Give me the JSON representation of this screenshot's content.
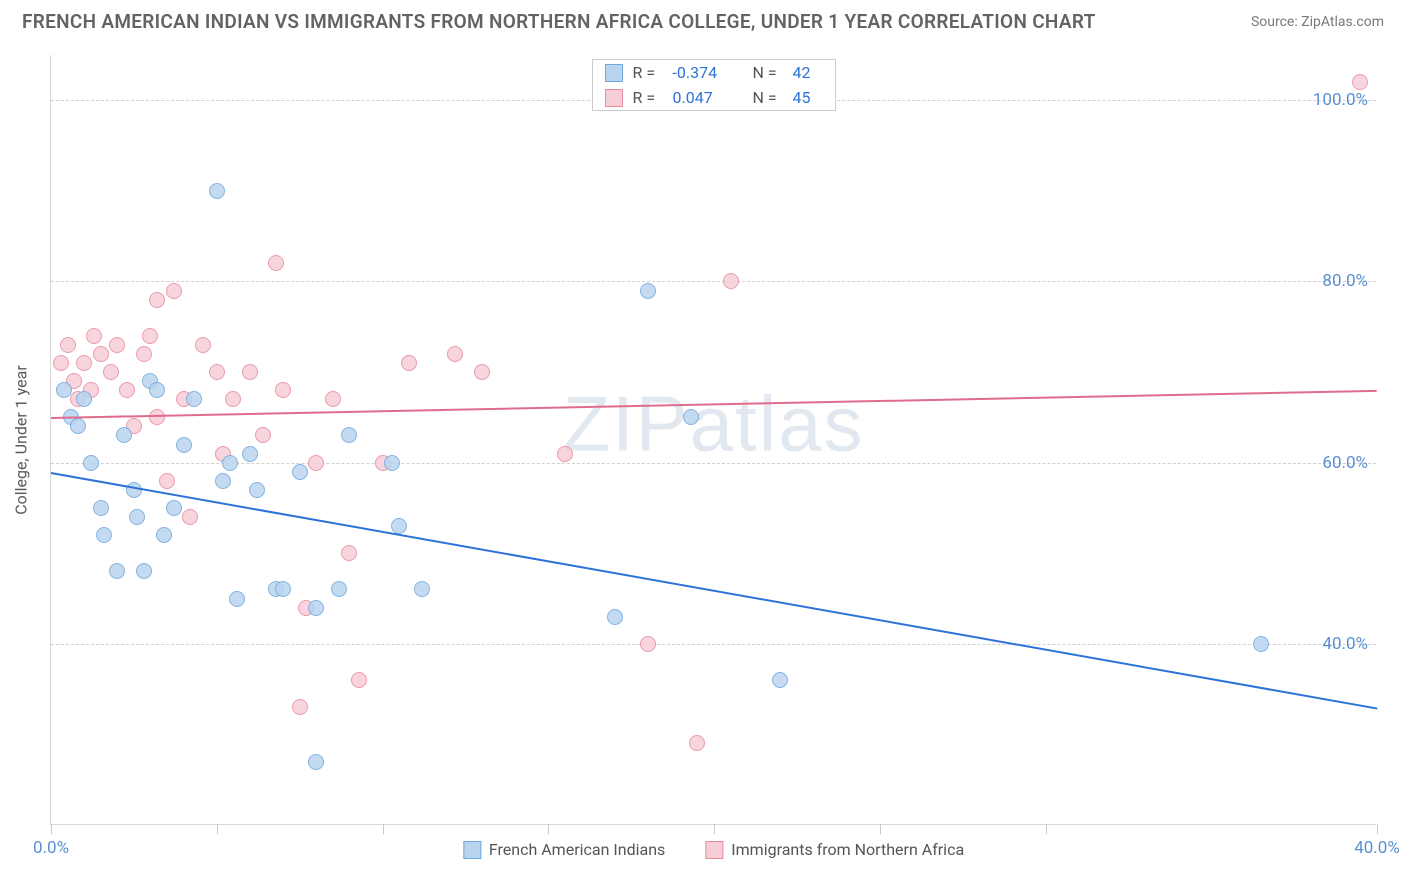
{
  "title": "FRENCH AMERICAN INDIAN VS IMMIGRANTS FROM NORTHERN AFRICA COLLEGE, UNDER 1 YEAR CORRELATION CHART",
  "source_label": "Source: ZipAtlas.com",
  "watermark": "ZIPatlas",
  "chart": {
    "type": "scatter",
    "y_axis_label": "College, Under 1 year",
    "xlim": [
      0,
      40
    ],
    "ylim": [
      20,
      105
    ],
    "x_ticks": [
      0,
      5,
      10,
      15,
      20,
      25,
      30,
      40
    ],
    "x_tick_labels": {
      "0": "0.0%",
      "40": "40.0%"
    },
    "y_gridlines": [
      40,
      60,
      80,
      100
    ],
    "y_tick_labels": {
      "40": "40.0%",
      "60": "60.0%",
      "80": "80.0%",
      "100": "100.0%"
    },
    "background_color": "#ffffff",
    "grid_color": "#d0d0d0",
    "axis_color": "#d8d8d8",
    "tick_label_color": "#5a8fd6",
    "series": [
      {
        "name": "French American Indians",
        "fill_color": "#b9d4ef",
        "stroke_color": "#6fa8dc",
        "trend_color": "#2d72d9",
        "stats": {
          "R": "-0.374",
          "N": "42"
        },
        "trend": {
          "x1": 0,
          "y1": 59,
          "x2": 40,
          "y2": 33
        },
        "points": [
          [
            0.4,
            68
          ],
          [
            0.6,
            65
          ],
          [
            0.8,
            64
          ],
          [
            1.0,
            67
          ],
          [
            1.2,
            60
          ],
          [
            1.5,
            55
          ],
          [
            1.6,
            52
          ],
          [
            2.0,
            48
          ],
          [
            2.2,
            63
          ],
          [
            2.5,
            57
          ],
          [
            2.6,
            54
          ],
          [
            2.8,
            48
          ],
          [
            3.0,
            69
          ],
          [
            3.2,
            68
          ],
          [
            3.4,
            52
          ],
          [
            3.7,
            55
          ],
          [
            4.0,
            62
          ],
          [
            4.3,
            67
          ],
          [
            5.0,
            90
          ],
          [
            5.2,
            58
          ],
          [
            5.4,
            60
          ],
          [
            5.6,
            45
          ],
          [
            6.0,
            61
          ],
          [
            6.2,
            57
          ],
          [
            6.8,
            46
          ],
          [
            7.0,
            46
          ],
          [
            7.5,
            59
          ],
          [
            8.0,
            44
          ],
          [
            8.0,
            27
          ],
          [
            8.7,
            46
          ],
          [
            9.0,
            63
          ],
          [
            10.3,
            60
          ],
          [
            10.5,
            53
          ],
          [
            11.2,
            46
          ],
          [
            17.0,
            43
          ],
          [
            18.0,
            79
          ],
          [
            19.3,
            65
          ],
          [
            22.0,
            36
          ],
          [
            36.5,
            40
          ]
        ]
      },
      {
        "name": "Immigrants from Northern Africa",
        "fill_color": "#f7cdd6",
        "stroke_color": "#e88aa0",
        "trend_color": "#e06c8b",
        "stats": {
          "R": "0.047",
          "N": "45"
        },
        "trend": {
          "x1": 0,
          "y1": 65,
          "x2": 40,
          "y2": 68
        },
        "points": [
          [
            0.3,
            71
          ],
          [
            0.5,
            73
          ],
          [
            0.7,
            69
          ],
          [
            0.8,
            67
          ],
          [
            1.0,
            71
          ],
          [
            1.2,
            68
          ],
          [
            1.3,
            74
          ],
          [
            1.5,
            72
          ],
          [
            1.8,
            70
          ],
          [
            2.0,
            73
          ],
          [
            2.3,
            68
          ],
          [
            2.5,
            64
          ],
          [
            2.8,
            72
          ],
          [
            3.0,
            74
          ],
          [
            3.2,
            78
          ],
          [
            3.2,
            65
          ],
          [
            3.5,
            58
          ],
          [
            3.7,
            79
          ],
          [
            4.0,
            67
          ],
          [
            4.2,
            54
          ],
          [
            4.6,
            73
          ],
          [
            5.0,
            70
          ],
          [
            5.2,
            61
          ],
          [
            5.5,
            67
          ],
          [
            6.0,
            70
          ],
          [
            6.4,
            63
          ],
          [
            6.8,
            82
          ],
          [
            7.0,
            68
          ],
          [
            7.5,
            33
          ],
          [
            7.7,
            44
          ],
          [
            8.0,
            60
          ],
          [
            8.5,
            67
          ],
          [
            9.0,
            50
          ],
          [
            9.3,
            36
          ],
          [
            10.0,
            60
          ],
          [
            10.8,
            71
          ],
          [
            12.2,
            72
          ],
          [
            13.0,
            70
          ],
          [
            15.5,
            61
          ],
          [
            18.0,
            40
          ],
          [
            19.5,
            29
          ],
          [
            20.5,
            80
          ],
          [
            39.5,
            102
          ]
        ]
      }
    ],
    "legend": {
      "stats_labels": {
        "R": "R =",
        "N": "N ="
      },
      "stat_value_color": "#2d72d9"
    }
  }
}
